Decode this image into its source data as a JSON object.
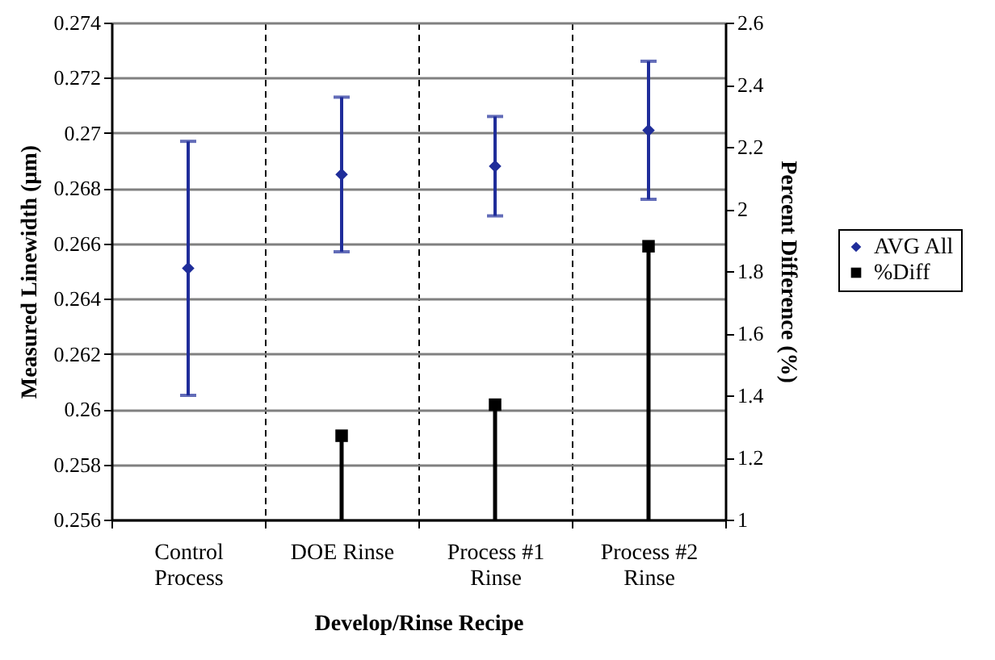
{
  "chart_data": {
    "type": "scatter",
    "xlabel": "Develop/Rinse Recipe",
    "ylabel": "Measured Linewidth (µm)",
    "y2label": "Percent Difference (%)",
    "categories": [
      "Control Process",
      "DOE Rinse",
      "Process #1 Rinse",
      "Process #2 Rinse"
    ],
    "series": [
      {
        "name": "AVG All",
        "color": "#1f2d9a",
        "marker": "diamond",
        "values": [
          0.2651,
          0.2685,
          0.2688,
          0.2701
        ],
        "errors": [
          0.0046,
          0.0028,
          0.0018,
          0.0025
        ]
      },
      {
        "name": "%Diff",
        "type": "lollipop",
        "axis": "y2",
        "color": "#000000",
        "marker": "square",
        "values": [
          null,
          1.27,
          1.37,
          1.88
        ]
      }
    ],
    "ylim": [
      0.256,
      0.274
    ],
    "yticks": [
      0.256,
      0.258,
      0.26,
      0.262,
      0.264,
      0.266,
      0.268,
      0.27,
      0.272,
      0.274
    ],
    "y2lim": [
      1,
      2.6
    ],
    "y2ticks": [
      1,
      1.2,
      1.4,
      1.6,
      1.8,
      2,
      2.2,
      2.4,
      2.6
    ],
    "grid": true,
    "legend": "right"
  }
}
